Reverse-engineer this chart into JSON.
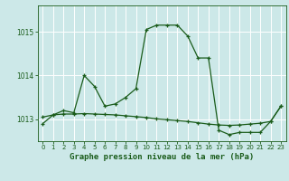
{
  "title": "Graphe pression niveau de la mer (hPa)",
  "bg_color": "#cce8e8",
  "line_color": "#1a5c1a",
  "grid_color": "#ffffff",
  "ylim": [
    1012.5,
    1015.6
  ],
  "xlim": [
    -0.5,
    23.5
  ],
  "yticks": [
    1013,
    1014,
    1015
  ],
  "xticks": [
    0,
    1,
    2,
    3,
    4,
    5,
    6,
    7,
    8,
    9,
    10,
    11,
    12,
    13,
    14,
    15,
    16,
    17,
    18,
    19,
    20,
    21,
    22,
    23
  ],
  "series1_x": [
    0,
    1,
    2,
    3,
    4,
    5,
    6,
    7,
    8,
    9,
    10,
    11,
    12,
    13,
    14,
    15,
    16,
    17,
    18,
    19,
    20,
    21,
    22,
    23
  ],
  "series1_y": [
    1012.9,
    1013.1,
    1013.2,
    1013.15,
    1014.0,
    1013.75,
    1013.3,
    1013.35,
    1013.5,
    1013.7,
    1015.05,
    1015.15,
    1015.15,
    1015.15,
    1014.9,
    1014.4,
    1014.4,
    1012.75,
    1012.65,
    1012.7,
    1012.7,
    1012.7,
    1012.95,
    1013.3
  ],
  "series2_x": [
    0,
    1,
    2,
    3,
    4,
    5,
    6,
    7,
    8,
    9,
    10,
    11,
    12,
    13,
    14,
    15,
    16,
    17,
    18,
    19,
    20,
    21,
    22,
    23
  ],
  "series2_y": [
    1013.05,
    1013.1,
    1013.12,
    1013.12,
    1013.13,
    1013.12,
    1013.11,
    1013.1,
    1013.08,
    1013.06,
    1013.04,
    1013.01,
    1012.99,
    1012.97,
    1012.95,
    1012.92,
    1012.89,
    1012.87,
    1012.86,
    1012.87,
    1012.89,
    1012.91,
    1012.95,
    1013.3
  ],
  "ylabel_fontsize": 5.5,
  "xlabel_fontsize": 6.5,
  "tick_fontsize": 5.0
}
